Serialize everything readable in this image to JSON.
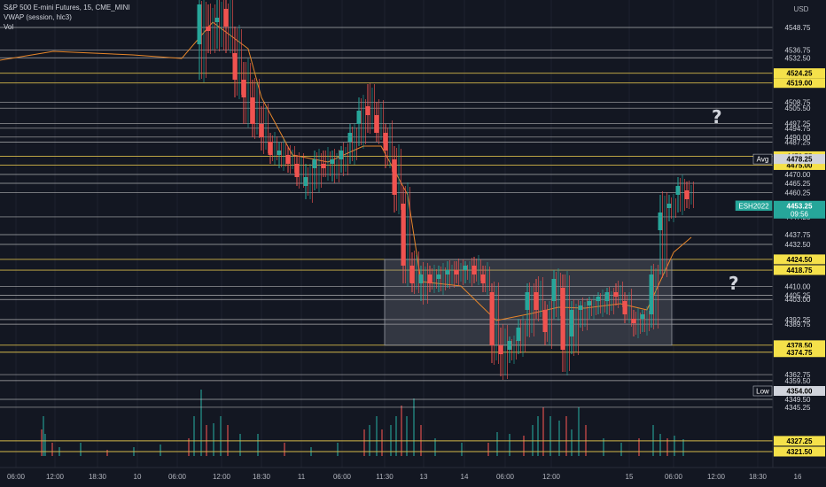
{
  "legend": {
    "symbol_line": "S&P 500 E-mini Futures, 15, CME_MINI",
    "vwap_line": "VWAP (session, hlc3)",
    "vol_line": "Vol"
  },
  "currency": "USD",
  "annotations": [
    "?",
    "?"
  ],
  "colors": {
    "background": "#131722",
    "white_level": "#c8c8c8",
    "yellow_level": "#d4b84a",
    "up": "#26a69a",
    "down": "#ef5350",
    "vwap": "#e6862a",
    "range_box": "#5d606b",
    "tag_yellow": "#f5e14a",
    "tag_teal": "#26a69a"
  },
  "chart_data": {
    "type": "candlestick",
    "title": "S&P 500 E-mini Futures, 15, CME_MINI",
    "ylim": [
      4317,
      4570
    ],
    "y_ticks": [
      "4548.75",
      "4536.75",
      "4532.50",
      "4508.75",
      "4505.50",
      "4497.25",
      "4494.75",
      "4490.00",
      "4487.25",
      "4470.00",
      "4465.25",
      "4460.25",
      "4447.25",
      "4437.75",
      "4432.50",
      "4410.00",
      "4405.25",
      "4403.00",
      "4392.25",
      "4389.75",
      "4362.75",
      "4359.50",
      "4349.50",
      "4345.25"
    ],
    "x_ticks": [
      "06:00",
      "12:00",
      "18:30",
      "10",
      "06:00",
      "12:00",
      "18:30",
      "11",
      "06:00",
      "11:30",
      "13",
      "14",
      "06:00",
      "12:00",
      "15",
      "06:00",
      "12:00",
      "18:30",
      "16"
    ],
    "price_levels_white": [
      4548.75,
      4536.75,
      4532.5,
      4508.75,
      4505.5,
      4497.25,
      4494.75,
      4490,
      4487.25,
      4470,
      4465.25,
      4460.25,
      4447.25,
      4437.75,
      4432.5,
      4410,
      4405.25,
      4403,
      4392.25,
      4389.75,
      4362.75,
      4359.5,
      4349.5,
      4345.25
    ],
    "price_levels_yellow": [
      4524.25,
      4519,
      4479.75,
      4475,
      4424.5,
      4418.75,
      4378.5,
      4374.75,
      4327.25,
      4321.5
    ],
    "tags": [
      {
        "label": "4524.25",
        "value": 4524.25,
        "style": "yellow"
      },
      {
        "label": "4519.00",
        "value": 4519,
        "style": "yellow"
      },
      {
        "label": "4479.75",
        "value": 4479.75,
        "style": "yellow"
      },
      {
        "label": "4475.00",
        "value": 4475,
        "style": "yellow"
      },
      {
        "label": "4424.50",
        "value": 4424.5,
        "style": "yellow"
      },
      {
        "label": "4418.75",
        "value": 4418.75,
        "style": "yellow"
      },
      {
        "label": "4378.50",
        "value": 4378.5,
        "style": "yellow"
      },
      {
        "label": "4374.75",
        "value": 4374.75,
        "style": "yellow"
      },
      {
        "label": "4327.25",
        "value": 4327.25,
        "style": "yellow"
      },
      {
        "label": "4321.50",
        "value": 4321.5,
        "style": "yellow"
      },
      {
        "label": "4478.25",
        "value": 4478.25,
        "style": "white",
        "marker": "Avg"
      },
      {
        "label": "4354.00",
        "value": 4354,
        "style": "white",
        "marker": "Low"
      },
      {
        "label": "4453.25",
        "value": 4453.25,
        "style": "teal",
        "marker": "ESH2022",
        "sub": "09:56"
      }
    ],
    "vwap_path_img": [
      [
        0,
        68
      ],
      [
        60,
        58
      ],
      [
        150,
        62
      ],
      [
        205,
        66
      ],
      [
        240,
        25
      ],
      [
        280,
        55
      ],
      [
        295,
        110
      ],
      [
        330,
        175
      ],
      [
        370,
        183
      ],
      [
        410,
        165
      ],
      [
        430,
        165
      ],
      [
        460,
        220
      ],
      [
        475,
        318
      ],
      [
        520,
        323
      ],
      [
        560,
        362
      ],
      [
        600,
        354
      ],
      [
        630,
        347
      ],
      [
        660,
        348
      ],
      [
        700,
        343
      ],
      [
        730,
        350
      ],
      [
        760,
        285
      ],
      [
        780,
        268
      ]
    ],
    "range_box": {
      "x0": "12 (before 13)",
      "x1": "15 (06:00)",
      "y_top": 4424.5,
      "y_bottom": 4378.5
    },
    "candles_img": [
      [
        225,
        5,
        0,
        90,
        50,
        1
      ],
      [
        235,
        30,
        5,
        60,
        35,
        0
      ],
      [
        245,
        25,
        0,
        55,
        20,
        1
      ],
      [
        255,
        10,
        0,
        60,
        30,
        0
      ],
      [
        265,
        60,
        30,
        110,
        90,
        0
      ],
      [
        275,
        90,
        70,
        140,
        110,
        0
      ],
      [
        285,
        110,
        90,
        155,
        140,
        0
      ],
      [
        295,
        140,
        120,
        170,
        155,
        0
      ],
      [
        305,
        160,
        150,
        185,
        175,
        0
      ],
      [
        315,
        170,
        160,
        190,
        175,
        1
      ],
      [
        325,
        175,
        165,
        195,
        185,
        0
      ],
      [
        335,
        185,
        175,
        210,
        200,
        0
      ],
      [
        345,
        200,
        185,
        225,
        210,
        1
      ],
      [
        355,
        190,
        170,
        215,
        180,
        1
      ],
      [
        365,
        185,
        170,
        200,
        190,
        0
      ],
      [
        375,
        185,
        170,
        205,
        180,
        1
      ],
      [
        385,
        180,
        165,
        195,
        170,
        1
      ],
      [
        395,
        160,
        140,
        185,
        150,
        1
      ],
      [
        405,
        140,
        110,
        165,
        125,
        1
      ],
      [
        415,
        120,
        95,
        150,
        130,
        0
      ],
      [
        425,
        130,
        115,
        160,
        150,
        0
      ],
      [
        435,
        150,
        140,
        190,
        170,
        0
      ],
      [
        445,
        180,
        165,
        240,
        220,
        0
      ],
      [
        455,
        230,
        210,
        320,
        300,
        0
      ],
      [
        465,
        300,
        285,
        330,
        320,
        0
      ],
      [
        475,
        320,
        300,
        340,
        310,
        1
      ],
      [
        485,
        310,
        300,
        330,
        320,
        0
      ],
      [
        495,
        315,
        300,
        330,
        310,
        1
      ],
      [
        505,
        310,
        295,
        325,
        305,
        1
      ],
      [
        515,
        305,
        295,
        320,
        310,
        0
      ],
      [
        525,
        305,
        295,
        320,
        300,
        1
      ],
      [
        535,
        300,
        290,
        320,
        310,
        0
      ],
      [
        545,
        310,
        300,
        330,
        320,
        0
      ],
      [
        555,
        330,
        320,
        410,
        390,
        0
      ],
      [
        565,
        390,
        370,
        425,
        400,
        0
      ],
      [
        575,
        395,
        380,
        410,
        385,
        1
      ],
      [
        585,
        385,
        360,
        400,
        370,
        1
      ],
      [
        595,
        350,
        320,
        380,
        330,
        1
      ],
      [
        605,
        330,
        315,
        360,
        350,
        0
      ],
      [
        615,
        350,
        340,
        390,
        375,
        0
      ],
      [
        625,
        340,
        305,
        360,
        315,
        1
      ],
      [
        635,
        325,
        310,
        420,
        395,
        0
      ],
      [
        645,
        380,
        340,
        400,
        350,
        1
      ],
      [
        655,
        350,
        340,
        370,
        345,
        1
      ],
      [
        665,
        345,
        335,
        360,
        340,
        1
      ],
      [
        675,
        340,
        330,
        355,
        335,
        1
      ],
      [
        685,
        340,
        325,
        355,
        330,
        1
      ],
      [
        695,
        330,
        320,
        345,
        335,
        0
      ],
      [
        705,
        340,
        330,
        365,
        355,
        0
      ],
      [
        715,
        360,
        350,
        380,
        365,
        0
      ],
      [
        725,
        360,
        350,
        375,
        355,
        1
      ],
      [
        735,
        355,
        300,
        370,
        310,
        1
      ],
      [
        745,
        260,
        220,
        310,
        240,
        1
      ],
      [
        755,
        235,
        220,
        250,
        230,
        1
      ],
      [
        765,
        220,
        200,
        240,
        210,
        1
      ],
      [
        775,
        215,
        205,
        235,
        225,
        0
      ]
    ],
    "volume_bars_img": [
      [
        46,
        485
      ],
      [
        48,
        470
      ],
      [
        50,
        490
      ],
      [
        58,
        500
      ],
      [
        66,
        505
      ],
      [
        90,
        500
      ],
      [
        120,
        508
      ],
      [
        150,
        505
      ],
      [
        180,
        502
      ],
      [
        212,
        495
      ],
      [
        218,
        470
      ],
      [
        226,
        440
      ],
      [
        232,
        480
      ],
      [
        240,
        478
      ],
      [
        248,
        470
      ],
      [
        256,
        480
      ],
      [
        270,
        490
      ],
      [
        290,
        490
      ],
      [
        320,
        500
      ],
      [
        350,
        505
      ],
      [
        380,
        500
      ],
      [
        410,
        485
      ],
      [
        416,
        480
      ],
      [
        424,
        470
      ],
      [
        430,
        485
      ],
      [
        440,
        480
      ],
      [
        446,
        470
      ],
      [
        452,
        458
      ],
      [
        458,
        470
      ],
      [
        466,
        450
      ],
      [
        474,
        480
      ],
      [
        490,
        495
      ],
      [
        520,
        500
      ],
      [
        550,
        500
      ],
      [
        560,
        488
      ],
      [
        574,
        490
      ],
      [
        590,
        492
      ],
      [
        600,
        480
      ],
      [
        606,
        470
      ],
      [
        612,
        460
      ],
      [
        620,
        470
      ],
      [
        630,
        475
      ],
      [
        638,
        470
      ],
      [
        644,
        485
      ],
      [
        652,
        460
      ],
      [
        660,
        480
      ],
      [
        680,
        495
      ],
      [
        700,
        500
      ],
      [
        720,
        495
      ],
      [
        736,
        480
      ],
      [
        744,
        490
      ],
      [
        752,
        495
      ],
      [
        760,
        492
      ],
      [
        770,
        496
      ]
    ]
  }
}
